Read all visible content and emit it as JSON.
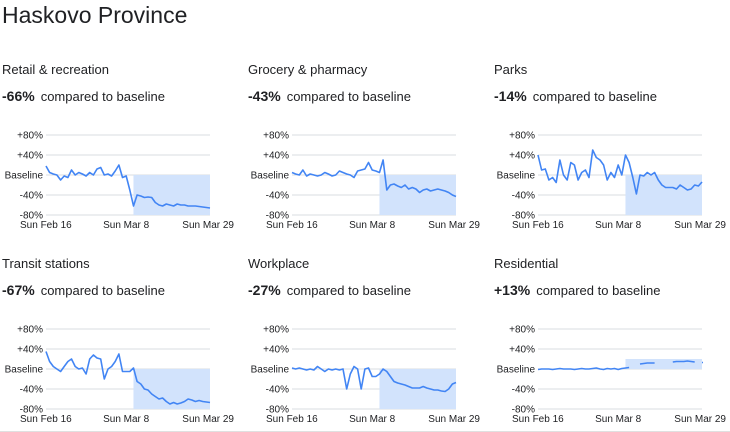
{
  "title": "Haskovo Province",
  "colors": {
    "line": "#4285f4",
    "fill": "#d2e3fc",
    "grid": "#dadce0",
    "text": "#202124",
    "axis": "#5f6368"
  },
  "chart_data": [
    {
      "type": "line",
      "category": "Retail & recreation",
      "percent": "-66%",
      "comparison": "compared to baseline",
      "y_labels": [
        "+80%",
        "+40%",
        "Baseline",
        "-40%",
        "-80%"
      ],
      "x_labels": [
        "Sun Feb 16",
        "Sun Mar 8",
        "Sun Mar 29"
      ],
      "ylim": [
        -80,
        80
      ],
      "baseline": 0,
      "x": [
        "Feb 15",
        "Feb 16",
        "Feb 17",
        "Feb 18",
        "Feb 19",
        "Feb 20",
        "Feb 21",
        "Feb 22",
        "Feb 23",
        "Feb 24",
        "Feb 25",
        "Feb 26",
        "Feb 27",
        "Feb 28",
        "Feb 29",
        "Mar 1",
        "Mar 2",
        "Mar 3",
        "Mar 4",
        "Mar 5",
        "Mar 6",
        "Mar 7",
        "Mar 8",
        "Mar 9",
        "Mar 10",
        "Mar 11",
        "Mar 12",
        "Mar 13",
        "Mar 14",
        "Mar 15",
        "Mar 16",
        "Mar 17",
        "Mar 18",
        "Mar 19",
        "Mar 20",
        "Mar 21",
        "Mar 22",
        "Mar 23",
        "Mar 24",
        "Mar 25",
        "Mar 26",
        "Mar 27",
        "Mar 28",
        "Mar 29",
        "Mar 30",
        "Mar 31"
      ],
      "values": [
        18,
        5,
        2,
        0,
        -10,
        -2,
        -5,
        10,
        0,
        5,
        2,
        -2,
        5,
        0,
        12,
        15,
        0,
        2,
        -2,
        8,
        20,
        -5,
        -2,
        -30,
        -62,
        -40,
        -42,
        -45,
        -44,
        -45,
        -55,
        -60,
        -62,
        -58,
        -60,
        -62,
        -58,
        -60,
        -60,
        -62,
        -62,
        -62,
        -63,
        -64,
        -65,
        -66
      ],
      "gaps": []
    },
    {
      "type": "line",
      "category": "Grocery & pharmacy",
      "percent": "-43%",
      "comparison": "compared to baseline",
      "y_labels": [
        "+80%",
        "+40%",
        "Baseline",
        "-40%",
        "-80%"
      ],
      "x_labels": [
        "Sun Feb 16",
        "Sun Mar 8",
        "Sun Mar 29"
      ],
      "ylim": [
        -80,
        80
      ],
      "baseline": 0,
      "x": [
        "Feb 15",
        "Feb 16",
        "Feb 17",
        "Feb 18",
        "Feb 19",
        "Feb 20",
        "Feb 21",
        "Feb 22",
        "Feb 23",
        "Feb 24",
        "Feb 25",
        "Feb 26",
        "Feb 27",
        "Feb 28",
        "Feb 29",
        "Mar 1",
        "Mar 2",
        "Mar 3",
        "Mar 4",
        "Mar 5",
        "Mar 6",
        "Mar 7",
        "Mar 8",
        "Mar 9",
        "Mar 10",
        "Mar 11",
        "Mar 12",
        "Mar 13",
        "Mar 14",
        "Mar 15",
        "Mar 16",
        "Mar 17",
        "Mar 18",
        "Mar 19",
        "Mar 20",
        "Mar 21",
        "Mar 22",
        "Mar 23",
        "Mar 24",
        "Mar 25",
        "Mar 26",
        "Mar 27",
        "Mar 28",
        "Mar 29",
        "Mar 30",
        "Mar 31"
      ],
      "values": [
        5,
        2,
        0,
        10,
        -2,
        2,
        0,
        -2,
        0,
        5,
        2,
        -2,
        0,
        8,
        5,
        2,
        0,
        -5,
        8,
        10,
        12,
        25,
        10,
        8,
        5,
        30,
        -30,
        -20,
        -18,
        -22,
        -25,
        -20,
        -28,
        -25,
        -28,
        -35,
        -30,
        -28,
        -32,
        -30,
        -28,
        -30,
        -32,
        -35,
        -40,
        -43
      ],
      "gaps": []
    },
    {
      "type": "line",
      "category": "Parks",
      "percent": "-14%",
      "comparison": "compared to baseline",
      "y_labels": [
        "+80%",
        "+40%",
        "Baseline",
        "-40%",
        "-80%"
      ],
      "x_labels": [
        "Sun Feb 16",
        "Sun Mar 8",
        "Sun Mar 29"
      ],
      "ylim": [
        -80,
        80
      ],
      "baseline": 0,
      "x": [
        "Feb 15",
        "Feb 16",
        "Feb 17",
        "Feb 18",
        "Feb 19",
        "Feb 20",
        "Feb 21",
        "Feb 22",
        "Feb 23",
        "Feb 24",
        "Feb 25",
        "Feb 26",
        "Feb 27",
        "Feb 28",
        "Feb 29",
        "Mar 1",
        "Mar 2",
        "Mar 3",
        "Mar 4",
        "Mar 5",
        "Mar 6",
        "Mar 7",
        "Mar 8",
        "Mar 9",
        "Mar 10",
        "Mar 11",
        "Mar 12",
        "Mar 13",
        "Mar 14",
        "Mar 15",
        "Mar 16",
        "Mar 17",
        "Mar 18",
        "Mar 19",
        "Mar 20",
        "Mar 21",
        "Mar 22",
        "Mar 23",
        "Mar 24",
        "Mar 25",
        "Mar 26",
        "Mar 27",
        "Mar 28",
        "Mar 29",
        "Mar 30",
        "Mar 31"
      ],
      "values": [
        40,
        10,
        12,
        -10,
        -5,
        -15,
        30,
        0,
        -10,
        25,
        20,
        -10,
        5,
        10,
        -5,
        50,
        35,
        30,
        20,
        -10,
        5,
        -5,
        20,
        0,
        40,
        25,
        -5,
        -38,
        0,
        -2,
        5,
        0,
        5,
        -10,
        -20,
        -25,
        -25,
        -25,
        -28,
        -20,
        -25,
        -30,
        -28,
        -20,
        -22,
        -14
      ],
      "gaps": []
    },
    {
      "type": "line",
      "category": "Transit stations",
      "percent": "-67%",
      "comparison": "compared to baseline",
      "y_labels": [
        "+80%",
        "+40%",
        "Baseline",
        "-40%",
        "-80%"
      ],
      "x_labels": [
        "Sun Feb 16",
        "Sun Mar 8",
        "Sun Mar 29"
      ],
      "ylim": [
        -80,
        80
      ],
      "baseline": 0,
      "x": [
        "Feb 15",
        "Feb 16",
        "Feb 17",
        "Feb 18",
        "Feb 19",
        "Feb 20",
        "Feb 21",
        "Feb 22",
        "Feb 23",
        "Feb 24",
        "Feb 25",
        "Feb 26",
        "Feb 27",
        "Feb 28",
        "Feb 29",
        "Mar 1",
        "Mar 2",
        "Mar 3",
        "Mar 4",
        "Mar 5",
        "Mar 6",
        "Mar 7",
        "Mar 8",
        "Mar 9",
        "Mar 10",
        "Mar 11",
        "Mar 12",
        "Mar 13",
        "Mar 14",
        "Mar 15",
        "Mar 16",
        "Mar 17",
        "Mar 18",
        "Mar 19",
        "Mar 20",
        "Mar 21",
        "Mar 22",
        "Mar 23",
        "Mar 24",
        "Mar 25",
        "Mar 26",
        "Mar 27",
        "Mar 28",
        "Mar 29",
        "Mar 30",
        "Mar 31"
      ],
      "values": [
        35,
        15,
        5,
        0,
        -5,
        5,
        15,
        20,
        5,
        0,
        2,
        -10,
        20,
        28,
        22,
        20,
        -20,
        0,
        5,
        15,
        30,
        -5,
        -5,
        -5,
        2,
        -25,
        -30,
        -40,
        -42,
        -50,
        -55,
        -60,
        -58,
        -65,
        -70,
        -67,
        -70,
        -68,
        -65,
        -60,
        -62,
        -65,
        -63,
        -65,
        -66,
        -67
      ],
      "gaps": []
    },
    {
      "type": "line",
      "category": "Workplace",
      "percent": "-27%",
      "comparison": "compared to baseline",
      "y_labels": [
        "+80%",
        "+40%",
        "Baseline",
        "-40%",
        "-80%"
      ],
      "x_labels": [
        "Sun Feb 16",
        "Sun Mar 8",
        "Sun Mar 29"
      ],
      "ylim": [
        -80,
        80
      ],
      "baseline": 0,
      "x": [
        "Feb 15",
        "Feb 16",
        "Feb 17",
        "Feb 18",
        "Feb 19",
        "Feb 20",
        "Feb 21",
        "Feb 22",
        "Feb 23",
        "Feb 24",
        "Feb 25",
        "Feb 26",
        "Feb 27",
        "Feb 28",
        "Feb 29",
        "Mar 1",
        "Mar 2",
        "Mar 3",
        "Mar 4",
        "Mar 5",
        "Mar 6",
        "Mar 7",
        "Mar 8",
        "Mar 9",
        "Mar 10",
        "Mar 11",
        "Mar 12",
        "Mar 13",
        "Mar 14",
        "Mar 15",
        "Mar 16",
        "Mar 17",
        "Mar 18",
        "Mar 19",
        "Mar 20",
        "Mar 21",
        "Mar 22",
        "Mar 23",
        "Mar 24",
        "Mar 25",
        "Mar 26",
        "Mar 27",
        "Mar 28",
        "Mar 29",
        "Mar 30",
        "Mar 31"
      ],
      "values": [
        2,
        0,
        2,
        0,
        -2,
        0,
        -2,
        5,
        0,
        -5,
        0,
        -2,
        0,
        -2,
        0,
        -40,
        -10,
        5,
        0,
        -40,
        0,
        2,
        -15,
        -15,
        -10,
        0,
        -5,
        -15,
        -25,
        -28,
        -30,
        -32,
        -35,
        -38,
        -38,
        -38,
        -35,
        -38,
        -40,
        -42,
        -42,
        -44,
        -45,
        -40,
        -30,
        -27
      ],
      "gaps": []
    },
    {
      "type": "line",
      "category": "Residential",
      "percent": "+13%",
      "comparison": "compared to baseline",
      "y_labels": [
        "+80%",
        "+40%",
        "Baseline",
        "-40%",
        "-80%"
      ],
      "x_labels": [
        "Sun Feb 16",
        "Sun Mar 8",
        "Sun Mar 29"
      ],
      "ylim": [
        -80,
        80
      ],
      "baseline": 0,
      "x": [
        "Feb 15",
        "Feb 16",
        "Feb 17",
        "Feb 18",
        "Feb 19",
        "Feb 20",
        "Feb 21",
        "Feb 22",
        "Feb 23",
        "Feb 24",
        "Feb 25",
        "Feb 26",
        "Feb 27",
        "Feb 28",
        "Feb 29",
        "Mar 1",
        "Mar 2",
        "Mar 3",
        "Mar 4",
        "Mar 5",
        "Mar 6",
        "Mar 7",
        "Mar 8",
        "Mar 9",
        "Mar 10",
        "Mar 11",
        "Mar 12",
        "Mar 13",
        "Mar 14",
        "Mar 15",
        "Mar 16",
        "Mar 17",
        "Mar 18",
        "Mar 19",
        "Mar 20",
        "Mar 21",
        "Mar 22",
        "Mar 23",
        "Mar 24",
        "Mar 25",
        "Mar 26",
        "Mar 27",
        "Mar 28",
        "Mar 29",
        "Mar 30",
        "Mar 31"
      ],
      "values": [
        -1,
        0,
        0,
        0,
        -1,
        0,
        1,
        0,
        0,
        0,
        -1,
        0,
        1,
        0,
        0,
        1,
        2,
        0,
        -1,
        1,
        0,
        1,
        -1,
        1,
        2,
        3,
        null,
        null,
        10,
        11,
        12,
        12,
        12,
        null,
        null,
        null,
        null,
        14,
        15,
        15,
        15,
        16,
        15,
        14,
        null,
        13
      ],
      "gaps": []
    }
  ]
}
